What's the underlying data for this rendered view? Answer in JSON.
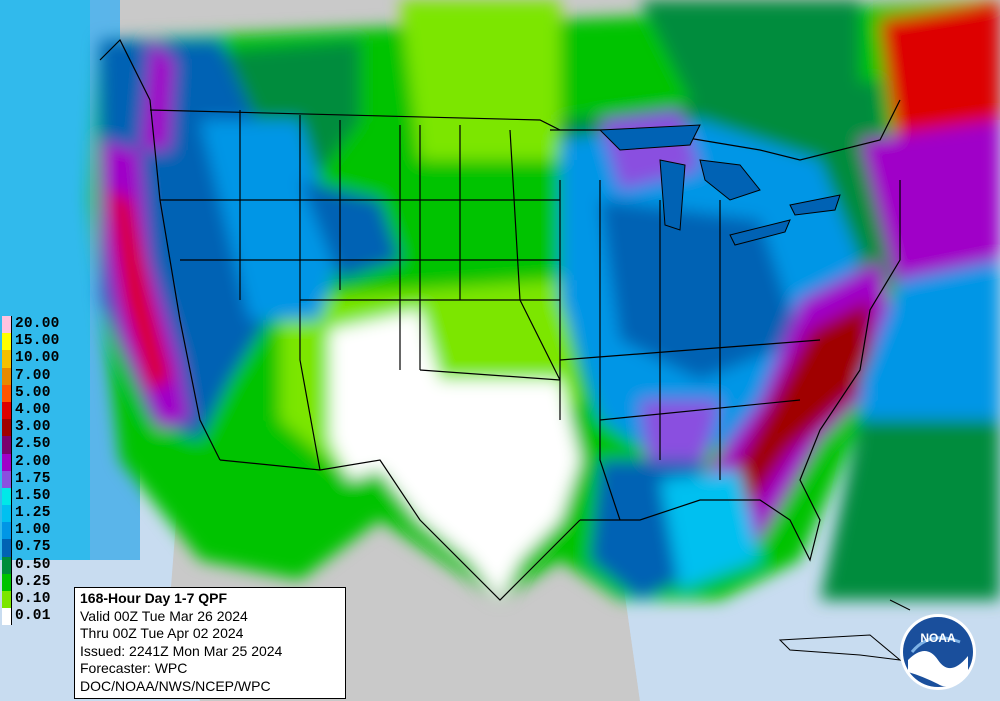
{
  "legend": {
    "items": [
      {
        "label": "20.00",
        "color": "#ffc3e0"
      },
      {
        "label": "15.00",
        "color": "#ffff00"
      },
      {
        "label": "10.00",
        "color": "#f5c000"
      },
      {
        "label": "7.00",
        "color": "#e88a00"
      },
      {
        "label": "5.00",
        "color": "#ff5500"
      },
      {
        "label": "4.00",
        "color": "#dd0000"
      },
      {
        "label": "3.00",
        "color": "#a00000"
      },
      {
        "label": "2.50",
        "color": "#7a006e"
      },
      {
        "label": "2.00",
        "color": "#a000c8"
      },
      {
        "label": "1.75",
        "color": "#8a50e0"
      },
      {
        "label": "1.50",
        "color": "#00e8e8"
      },
      {
        "label": "1.25",
        "color": "#00c0f0"
      },
      {
        "label": "1.00",
        "color": "#0096e6"
      },
      {
        "label": "0.75",
        "color": "#0062b4"
      },
      {
        "label": "0.50",
        "color": "#008c3c"
      },
      {
        "label": "0.25",
        "color": "#00c300"
      },
      {
        "label": "0.10",
        "color": "#7ce600"
      },
      {
        "label": "0.01",
        "color": "#ffffff"
      }
    ]
  },
  "info": {
    "title": "168-Hour Day 1-7 QPF",
    "valid": "Valid 00Z Tue Mar 26 2024",
    "thru": "Thru 00Z Tue Apr 02 2024",
    "issued": "Issued: 2241Z Mon Mar 25 2024",
    "forecaster": "Forecaster: WPC",
    "agency": "DOC/NOAA/NWS/NCEP/WPC"
  },
  "logo": {
    "text": "NOAA"
  },
  "colors": {
    "land_outside": "#c9c9c9",
    "ocean": "#c8dcf0",
    "borders": "#000000"
  }
}
